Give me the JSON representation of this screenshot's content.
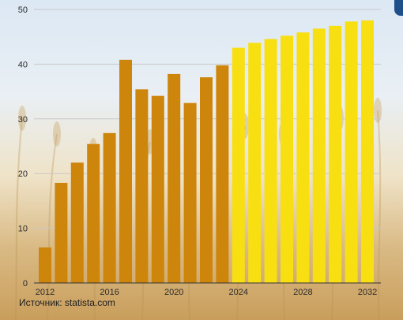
{
  "source": "Источник: statista.com",
  "colors": {
    "historical": "#cd860b",
    "forecast": "#f8df12",
    "gridline": "#c8c8c8",
    "axis": "#333333"
  },
  "chart_data": {
    "type": "bar",
    "title": "",
    "xlabel": "",
    "ylabel": "",
    "ylim": [
      0,
      50
    ],
    "yticks": [
      0,
      10,
      20,
      30,
      40,
      50
    ],
    "xticks": [
      2012,
      2016,
      2020,
      2024,
      2028,
      2032
    ],
    "grid": true,
    "categories": [
      2012,
      2013,
      2014,
      2015,
      2016,
      2017,
      2018,
      2019,
      2020,
      2021,
      2022,
      2023,
      2024,
      2025,
      2026,
      2027,
      2028,
      2029,
      2030,
      2031,
      2032
    ],
    "values": [
      6.5,
      18.3,
      22.0,
      25.4,
      27.4,
      40.8,
      35.4,
      34.2,
      38.2,
      32.9,
      37.6,
      39.8,
      43.0,
      43.9,
      44.6,
      45.2,
      45.8,
      46.5,
      47.0,
      47.8,
      48.0
    ],
    "series_colors": [
      "historical",
      "historical",
      "historical",
      "historical",
      "historical",
      "historical",
      "historical",
      "historical",
      "historical",
      "historical",
      "historical",
      "historical",
      "forecast",
      "forecast",
      "forecast",
      "forecast",
      "forecast",
      "forecast",
      "forecast",
      "forecast",
      "forecast"
    ]
  }
}
